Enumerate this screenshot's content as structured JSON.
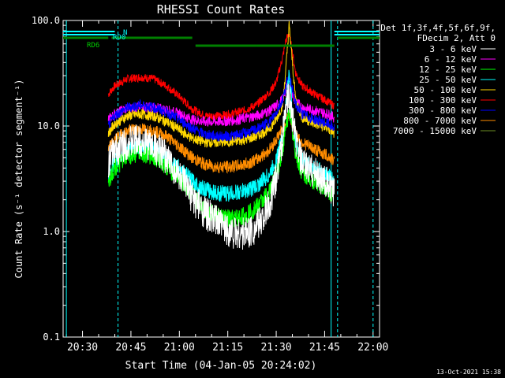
{
  "chart_data": {
    "type": "line",
    "title": "RHESSI Count Rates",
    "xlabel": "Start Time (04-Jan-05 20:24:02)",
    "ylabel": "Count Rate (s⁻¹ detector segment⁻¹)",
    "y_scale": "log",
    "ylim": [
      0.1,
      100
    ],
    "xlim": [
      "20:24",
      "22:02"
    ],
    "x_ticks": [
      "20:30",
      "20:45",
      "21:00",
      "21:15",
      "21:30",
      "21:45",
      "22:00"
    ],
    "y_ticks": [
      "0.1",
      "1.0",
      "10.0",
      "100.0"
    ],
    "legend_header": [
      "Det 1f,3f,4f,5f,6f,9f,",
      "FDecim 2, Att 0"
    ],
    "legend_position": "top-right outside",
    "footer_date": "13-Oct-2021 15:38",
    "x": [
      "20:38",
      "20:40",
      "20:44",
      "20:48",
      "20:52",
      "20:56",
      "21:00",
      "21:04",
      "21:08",
      "21:12",
      "21:16",
      "21:20",
      "21:24",
      "21:28",
      "21:30",
      "21:32",
      "21:33",
      "21:34",
      "21:35",
      "21:36",
      "21:38",
      "21:42",
      "21:46",
      "21:48"
    ],
    "series": [
      {
        "name": "3 - 6 keV",
        "color": "#ffffff",
        "values": [
          4.6,
          5.8,
          7.0,
          7.2,
          6.5,
          5.0,
          3.4,
          2.1,
          1.5,
          1.2,
          1.0,
          0.95,
          1.1,
          1.8,
          3.2,
          8.0,
          15.0,
          20.0,
          12.0,
          7.5,
          4.3,
          3.6,
          2.8,
          2.2
        ]
      },
      {
        "name": "6 - 12 keV",
        "color": "#ff00ff",
        "values": [
          11.5,
          13.0,
          14.8,
          15.2,
          15.0,
          14.2,
          13.0,
          11.5,
          11.0,
          11.0,
          11.2,
          11.8,
          12.5,
          14.0,
          15.5,
          18.0,
          22.0,
          28.0,
          20.0,
          17.0,
          15.0,
          14.0,
          13.0,
          12.0
        ]
      },
      {
        "name": "12 - 25 keV",
        "color": "#00ff00",
        "values": [
          3.0,
          4.0,
          5.2,
          5.6,
          5.2,
          4.2,
          3.2,
          2.2,
          1.6,
          1.4,
          1.3,
          1.4,
          1.7,
          2.4,
          3.4,
          6.0,
          10.0,
          14.0,
          9.0,
          5.5,
          3.6,
          3.0,
          2.5,
          2.2
        ]
      },
      {
        "name": "25 - 50 keV",
        "color": "#00ffff",
        "values": [
          3.6,
          4.6,
          5.8,
          6.3,
          6.0,
          5.0,
          4.0,
          3.0,
          2.5,
          2.3,
          2.3,
          2.4,
          2.7,
          3.5,
          4.8,
          8.0,
          16.0,
          32.0,
          14.0,
          7.0,
          4.8,
          4.0,
          3.4,
          3.0
        ]
      },
      {
        "name": "50 - 100 keV",
        "color": "#ffd700",
        "values": [
          8.5,
          10.5,
          12.5,
          13.0,
          12.5,
          11.0,
          9.2,
          7.6,
          7.0,
          7.0,
          7.1,
          7.4,
          8.0,
          9.5,
          11.5,
          16.0,
          35.0,
          90.0,
          40.0,
          18.0,
          12.0,
          10.5,
          9.5,
          8.5
        ]
      },
      {
        "name": "100 - 300 keV",
        "color": "#ff0000",
        "values": [
          20.0,
          24.0,
          28.0,
          29.0,
          28.0,
          24.0,
          19.0,
          14.5,
          12.5,
          12.5,
          13.0,
          14.0,
          16.0,
          21.0,
          26.0,
          45.0,
          65.0,
          75.0,
          50.0,
          32.0,
          24.0,
          20.0,
          17.0,
          15.5
        ]
      },
      {
        "name": "300 - 800 keV",
        "color": "#0000ff",
        "values": [
          10.0,
          12.5,
          15.0,
          15.8,
          15.0,
          13.5,
          11.5,
          9.5,
          8.3,
          8.0,
          8.0,
          8.5,
          9.3,
          11.0,
          13.5,
          18.0,
          24.0,
          30.0,
          22.0,
          16.0,
          13.0,
          11.5,
          10.5,
          9.5
        ]
      },
      {
        "name": "800 - 7000 keV",
        "color": "#ff8c00",
        "values": [
          6.0,
          7.5,
          9.0,
          9.4,
          9.0,
          8.0,
          6.4,
          5.0,
          4.3,
          4.1,
          4.1,
          4.3,
          4.8,
          6.0,
          7.5,
          9.5,
          11.0,
          13.0,
          10.5,
          8.5,
          7.0,
          6.0,
          5.2,
          4.6
        ]
      },
      {
        "name": "7000 - 15000 keV",
        "color": "#6b8e23",
        "values": [
          null,
          null,
          null,
          null,
          null,
          null,
          null,
          null,
          null,
          null,
          null,
          null,
          null,
          null,
          null,
          null,
          null,
          null,
          null,
          null,
          null,
          null,
          null,
          null
        ]
      }
    ],
    "annotations": [
      {
        "label": "RD0",
        "color": "#00ffff"
      },
      {
        "label": "RD6",
        "color": "#00cc00"
      },
      {
        "label": "N",
        "color": "#00ffff"
      }
    ],
    "attenuator_bars": {
      "color": "#00ffff",
      "segments": [
        [
          "20:24",
          "20:40"
        ],
        [
          "21:48",
          "22:02"
        ]
      ]
    },
    "decimation_bars": {
      "color": "#008000",
      "segments": [
        [
          "20:24",
          "20:38"
        ],
        [
          "20:39",
          "21:04"
        ],
        [
          "21:05",
          "21:24"
        ],
        [
          "21:24",
          "21:48"
        ],
        [
          "21:49",
          "22:02"
        ]
      ]
    },
    "vlines": [
      {
        "t": "20:25",
        "style": "solid"
      },
      {
        "t": "20:41",
        "style": "dashed"
      },
      {
        "t": "21:47",
        "style": "solid"
      },
      {
        "t": "21:49",
        "style": "dashed"
      },
      {
        "t": "22:00",
        "style": "dashed"
      }
    ]
  }
}
